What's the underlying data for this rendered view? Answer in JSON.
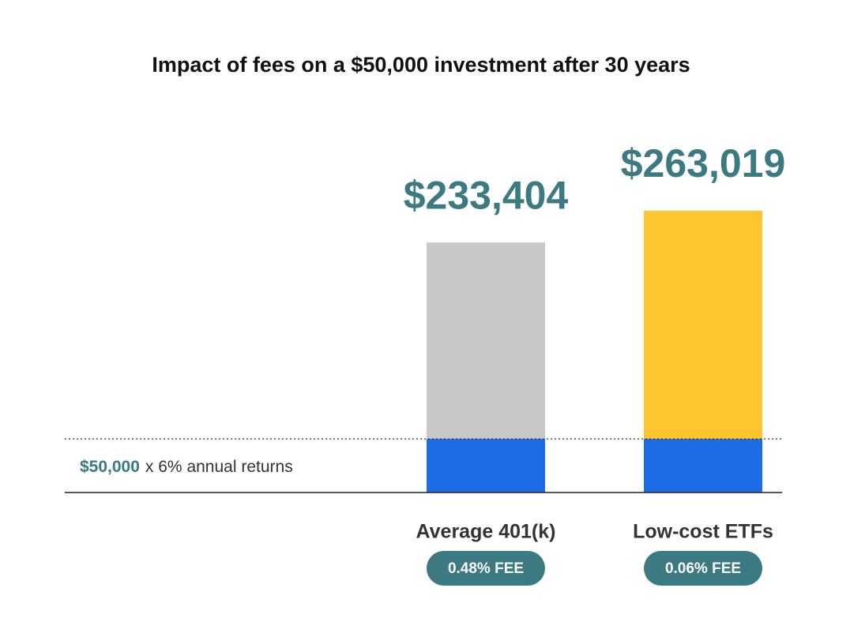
{
  "chart_data": {
    "type": "bar",
    "title": "Impact of fees on a $50,000 investment after 30 years",
    "categories": [
      "Average 401(k)",
      "Low-cost ETFs"
    ],
    "fee_labels": [
      "0.48% FEE",
      "0.06% FEE"
    ],
    "values": [
      233404,
      263019
    ],
    "value_labels": [
      "$233,404",
      "$263,019"
    ],
    "colors": [
      "#c8c8c8",
      "#fec52e"
    ],
    "label_color": "#3a7a80",
    "baseline": {
      "value": 50000,
      "label": "$50,000",
      "text": "x 6% annual returns",
      "color": "#1e6be6"
    }
  }
}
